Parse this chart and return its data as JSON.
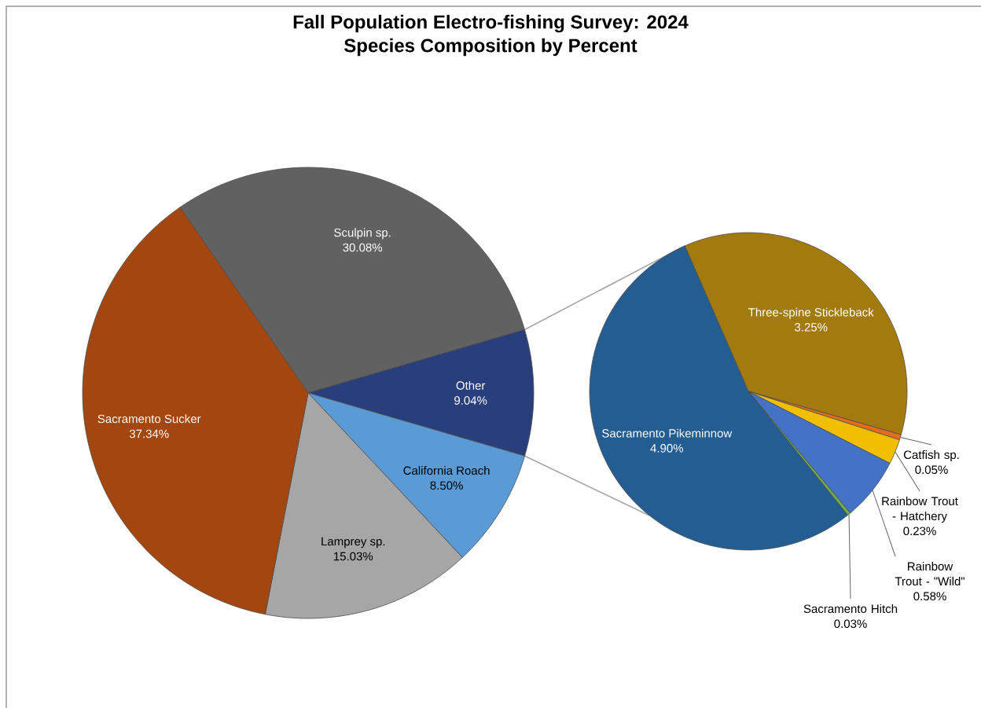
{
  "chart_data": [
    {
      "type": "pie",
      "title": "Fall Population Electro-fishing Survey: 2024",
      "subtitle": "Species Composition by Percent",
      "categories": [
        "Sculpin sp.",
        "Other",
        "California Roach",
        "Lamprey sp.",
        "Sacramento Sucker"
      ],
      "values": [
        30.08,
        9.04,
        8.5,
        15.03,
        37.34
      ],
      "colors": [
        "#616161",
        "#283f7c",
        "#5b9bd5",
        "#a6a6a6",
        "#a3460f"
      ],
      "value_labels": [
        "30.08%",
        "9.04%",
        "8.50%",
        "15.03%",
        "37.34%"
      ]
    },
    {
      "type": "pie",
      "categories": [
        "Three-spine Stickleback",
        "Catfish sp.",
        "Rainbow Trout - Hatchery",
        "Rainbow Trout - \"Wild\"",
        "Sacramento Hitch",
        "Sacramento Pikeminnow"
      ],
      "values": [
        3.25,
        0.05,
        0.23,
        0.58,
        0.03,
        4.9
      ],
      "colors": [
        "#a37a0e",
        "#e46c1a",
        "#f2bf00",
        "#4472c4",
        "#70ad47",
        "#235d91"
      ],
      "value_labels": [
        "3.25%",
        "0.05%",
        "0.23%",
        "0.58%",
        "0.03%",
        "4.90%"
      ]
    }
  ]
}
